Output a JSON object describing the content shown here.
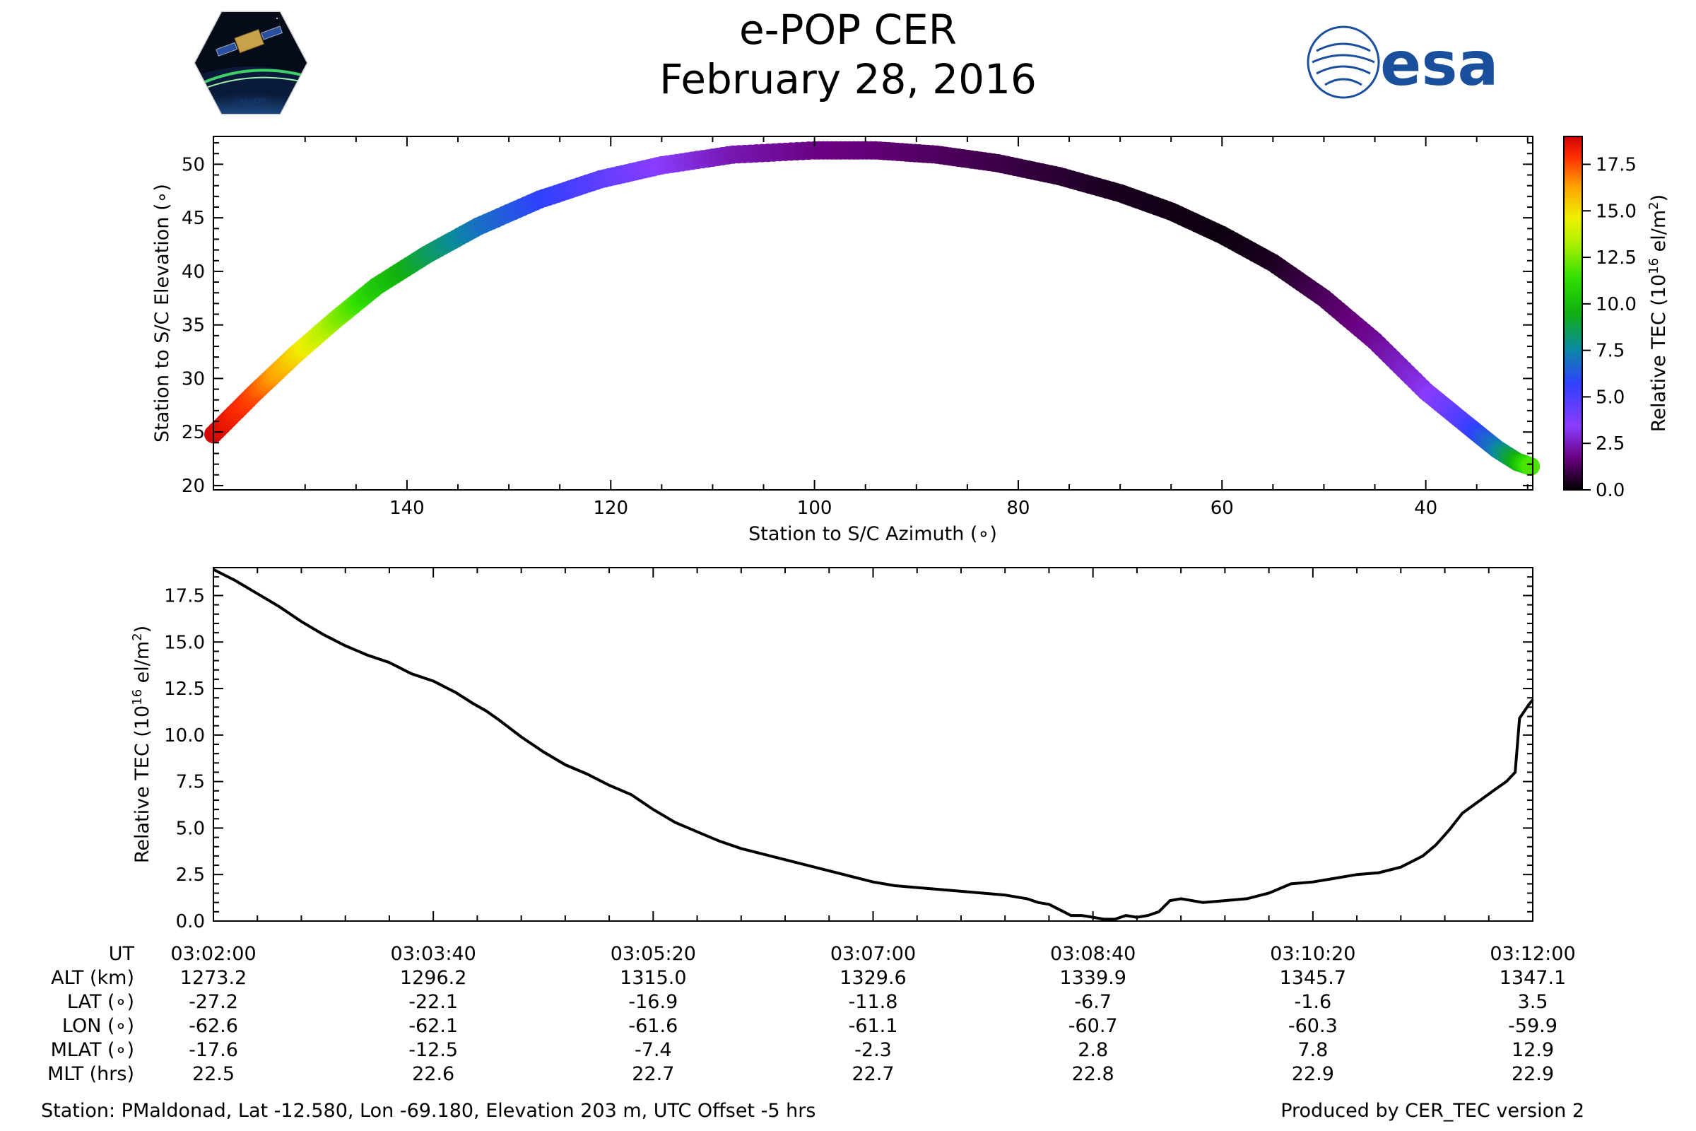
{
  "title": {
    "line1": "e-POP CER",
    "line2": "February 28, 2016"
  },
  "logos": {
    "left": "CASSIOPE",
    "right": "esa"
  },
  "colors": {
    "line": "#000000",
    "axis": "#000000",
    "background": "#ffffff"
  },
  "chart_data": [
    {
      "type": "scatter",
      "title": "",
      "xlabel": "Station to S/C Azimuth (∘)",
      "ylabel": "Station to S/C Elevation (∘)",
      "xlim": [
        159,
        29.5
      ],
      "ylim": [
        19.6,
        52.6
      ],
      "xticks": [
        140,
        120,
        100,
        80,
        60,
        40
      ],
      "yticks": [
        20,
        25,
        30,
        35,
        40,
        45,
        50
      ],
      "colormap": "nipy_spectral",
      "colorbar": {
        "label": "Relative TEC (10^16 el/m^2)",
        "label_main": "Relative TEC (10",
        "label_exp": "16",
        "label_tail": " el/m",
        "label_exp2": "2",
        "label_close": ")",
        "range": [
          0,
          19
        ],
        "ticks": [
          "0.0",
          "2.5",
          "5.0",
          "7.5",
          "10.0",
          "12.5",
          "15.0",
          "17.5"
        ]
      },
      "track": {
        "note": "points along the pass: azimuth (deg), elevation (deg), relative TEC",
        "points": [
          [
            159,
            24.8,
            18.9
          ],
          [
            155,
            28.6,
            17.5
          ],
          [
            151,
            32.2,
            15.2
          ],
          [
            147,
            35.5,
            12.8
          ],
          [
            143,
            38.6,
            10.5
          ],
          [
            138,
            41.6,
            8.6
          ],
          [
            133,
            44.2,
            7.0
          ],
          [
            127,
            46.7,
            5.8
          ],
          [
            121,
            48.6,
            4.6
          ],
          [
            115,
            49.9,
            3.4
          ],
          [
            108,
            50.9,
            2.4
          ],
          [
            100,
            51.3,
            1.8
          ],
          [
            94,
            51.3,
            1.6
          ],
          [
            88,
            50.9,
            1.3
          ],
          [
            82,
            50.1,
            1.0
          ],
          [
            76,
            48.9,
            0.7
          ],
          [
            70,
            47.3,
            0.4
          ],
          [
            65,
            45.6,
            0.3
          ],
          [
            60,
            43.4,
            0.2
          ],
          [
            55,
            40.8,
            0.4
          ],
          [
            50,
            37.5,
            1.2
          ],
          [
            45,
            33.5,
            2.0
          ],
          [
            40,
            28.8,
            3.2
          ],
          [
            36,
            25.7,
            5.0
          ],
          [
            33,
            23.4,
            7.2
          ],
          [
            31,
            22.2,
            9.5
          ],
          [
            29.7,
            21.8,
            11.8
          ]
        ]
      }
    },
    {
      "type": "line",
      "title": "",
      "xlabel": "",
      "ylabel": "Relative TEC (10^16 el/m^2)",
      "ylabel_main": "Relative TEC (10",
      "ylabel_exp": "16",
      "ylabel_tail": " el/m",
      "ylabel_exp2": "2",
      "ylabel_close": ")",
      "xlim": [
        0,
        600
      ],
      "ylim": [
        0,
        19
      ],
      "yticks": [
        0.0,
        2.5,
        5.0,
        7.5,
        10.0,
        12.5,
        15.0,
        17.5
      ],
      "x_unit": "seconds after 03:02:00 UT",
      "series": [
        {
          "name": "Relative TEC",
          "x": [
            0,
            10,
            20,
            30,
            40,
            50,
            60,
            70,
            80,
            90,
            100,
            110,
            118,
            124,
            130,
            140,
            150,
            160,
            170,
            180,
            190,
            200,
            210,
            220,
            230,
            240,
            250,
            260,
            270,
            280,
            290,
            300,
            310,
            320,
            330,
            340,
            350,
            360,
            370,
            375,
            380,
            385,
            390,
            395,
            400,
            405,
            410,
            415,
            420,
            425,
            430,
            435,
            440,
            450,
            460,
            470,
            480,
            490,
            500,
            510,
            520,
            530,
            540,
            550,
            556,
            562,
            568,
            575,
            582,
            588,
            592,
            594,
            598,
            600
          ],
          "values": [
            18.9,
            18.3,
            17.6,
            16.9,
            16.1,
            15.4,
            14.8,
            14.3,
            13.9,
            13.3,
            12.9,
            12.3,
            11.7,
            11.3,
            10.8,
            9.9,
            9.1,
            8.4,
            7.9,
            7.3,
            6.8,
            6.0,
            5.3,
            4.8,
            4.3,
            3.9,
            3.6,
            3.3,
            3.0,
            2.7,
            2.4,
            2.1,
            1.9,
            1.8,
            1.7,
            1.6,
            1.5,
            1.4,
            1.2,
            1.0,
            0.9,
            0.6,
            0.3,
            0.3,
            0.2,
            0.1,
            0.1,
            0.3,
            0.2,
            0.3,
            0.5,
            1.1,
            1.2,
            1.0,
            1.1,
            1.2,
            1.5,
            2.0,
            2.1,
            2.3,
            2.5,
            2.6,
            2.9,
            3.5,
            4.1,
            4.9,
            5.8,
            6.4,
            7.0,
            7.5,
            8.0,
            10.9,
            11.6,
            11.9
          ]
        }
      ]
    }
  ],
  "ephemeris": {
    "row_labels": [
      "UT",
      "ALT (km)",
      "LAT (∘)",
      "LON (∘)",
      "MLAT (∘)",
      "MLT (hrs)"
    ],
    "columns": [
      {
        "ut": "03:02:00",
        "alt": "1273.2",
        "lat": "-27.2",
        "lon": "-62.6",
        "mlat": "-17.6",
        "mlt": "22.5"
      },
      {
        "ut": "03:03:40",
        "alt": "1296.2",
        "lat": "-22.1",
        "lon": "-62.1",
        "mlat": "-12.5",
        "mlt": "22.6"
      },
      {
        "ut": "03:05:20",
        "alt": "1315.0",
        "lat": "-16.9",
        "lon": "-61.6",
        "mlat": "-7.4",
        "mlt": "22.7"
      },
      {
        "ut": "03:07:00",
        "alt": "1329.6",
        "lat": "-11.8",
        "lon": "-61.1",
        "mlat": "-2.3",
        "mlt": "22.7"
      },
      {
        "ut": "03:08:40",
        "alt": "1339.9",
        "lat": "-6.7",
        "lon": "-60.7",
        "mlat": "2.8",
        "mlt": "22.8"
      },
      {
        "ut": "03:10:20",
        "alt": "1345.7",
        "lat": "-1.6",
        "lon": "-60.3",
        "mlat": "7.8",
        "mlt": "22.9"
      },
      {
        "ut": "03:12:00",
        "alt": "1347.1",
        "lat": "3.5",
        "lon": "-59.9",
        "mlat": "12.9",
        "mlt": "22.9"
      }
    ]
  },
  "footer": {
    "station": "Station: PMaldonad, Lat -12.580, Lon -69.180, Elevation 203 m, UTC Offset -5 hrs",
    "produced": "Produced by CER_TEC version 2"
  }
}
